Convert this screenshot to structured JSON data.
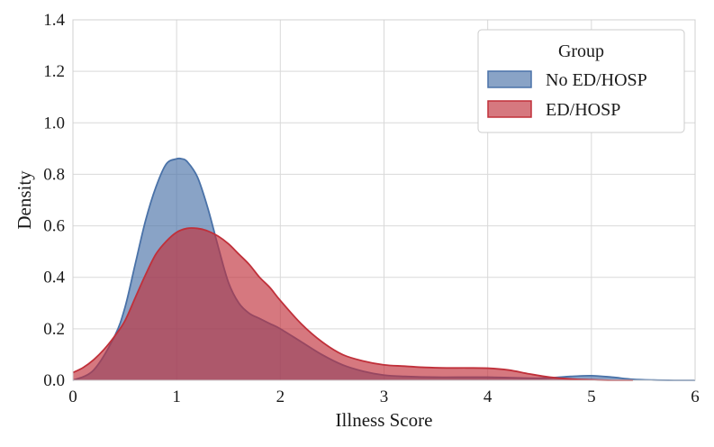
{
  "chart_data": {
    "type": "area",
    "title": "",
    "xlabel": "Illness Score",
    "ylabel": "Density",
    "xlim": [
      0,
      6
    ],
    "ylim": [
      0,
      1.4
    ],
    "xticks": [
      "0",
      "1",
      "2",
      "3",
      "4",
      "5",
      "6"
    ],
    "yticks": [
      "0.0",
      "0.2",
      "0.4",
      "0.6",
      "0.8",
      "1.0",
      "1.2",
      "1.4"
    ],
    "grid": true,
    "legend": {
      "title": "Group",
      "position": "top-right",
      "entries": [
        "No ED/HOSP",
        "ED/HOSP"
      ]
    },
    "series": [
      {
        "name": "No ED/HOSP",
        "color": "#4a72a8",
        "fill_opacity": 0.65,
        "x": [
          0.0,
          0.2,
          0.4,
          0.5,
          0.6,
          0.7,
          0.8,
          0.9,
          1.0,
          1.05,
          1.1,
          1.2,
          1.3,
          1.4,
          1.5,
          1.6,
          1.7,
          1.8,
          1.9,
          2.0,
          2.2,
          2.4,
          2.6,
          2.8,
          3.0,
          3.2,
          3.5,
          4.0,
          4.5,
          4.8,
          5.0,
          5.2,
          5.4,
          5.6,
          5.8,
          6.0
        ],
        "y": [
          0.0,
          0.04,
          0.17,
          0.28,
          0.45,
          0.62,
          0.75,
          0.84,
          0.86,
          0.86,
          0.85,
          0.79,
          0.67,
          0.52,
          0.38,
          0.3,
          0.26,
          0.24,
          0.22,
          0.2,
          0.15,
          0.1,
          0.06,
          0.035,
          0.02,
          0.015,
          0.012,
          0.012,
          0.008,
          0.015,
          0.018,
          0.012,
          0.004,
          0.001,
          0.0,
          0.0
        ]
      },
      {
        "name": "ED/HOSP",
        "color": "#c0303a",
        "fill_opacity": 0.65,
        "x": [
          0.0,
          0.1,
          0.2,
          0.3,
          0.4,
          0.5,
          0.6,
          0.7,
          0.8,
          0.9,
          1.0,
          1.1,
          1.2,
          1.3,
          1.4,
          1.5,
          1.6,
          1.7,
          1.8,
          1.9,
          2.0,
          2.2,
          2.4,
          2.6,
          2.8,
          3.0,
          3.2,
          3.4,
          3.6,
          3.8,
          4.0,
          4.2,
          4.4,
          4.6,
          4.8,
          5.0,
          5.2,
          5.4
        ],
        "y": [
          0.03,
          0.05,
          0.08,
          0.12,
          0.17,
          0.23,
          0.32,
          0.41,
          0.49,
          0.54,
          0.575,
          0.59,
          0.59,
          0.58,
          0.56,
          0.53,
          0.49,
          0.45,
          0.4,
          0.36,
          0.31,
          0.22,
          0.15,
          0.1,
          0.075,
          0.06,
          0.055,
          0.05,
          0.048,
          0.048,
          0.047,
          0.04,
          0.025,
          0.012,
          0.005,
          0.002,
          0.0,
          0.0
        ]
      }
    ]
  }
}
